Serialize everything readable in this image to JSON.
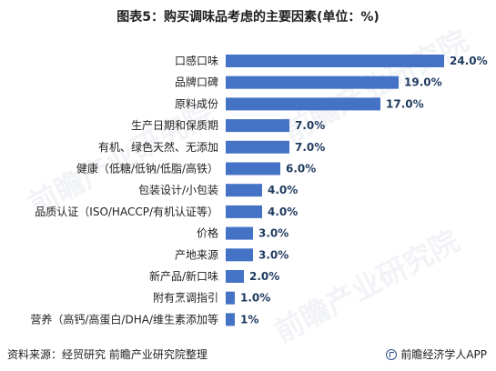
{
  "title": "图表5：购买调味品考虑的主要因素(单位：%)",
  "source": "资料来源：经贸研究  前瞻产业研究院整理",
  "brand": "前瞻经济学人APP",
  "watermark": "前瞻产业研究院",
  "colors": {
    "bar": "#4472c4"
  },
  "chart_data": {
    "type": "bar",
    "orientation": "horizontal",
    "categories": [
      "口感口味",
      "品牌口碑",
      "原料成份",
      "生产日期和保质期",
      "有机、绿色天然、无添加",
      "健康（低糖/低钠/低脂/高铁）",
      "包装设计/小包装",
      "品质认证（ISO/HACCP/有机认证等）",
      "价格",
      "产地来源",
      "新产品/新口味",
      "附有烹调指引",
      "营养（高钙/高蛋白/DHA/维生素添加等"
    ],
    "values": [
      24.0,
      19.0,
      17.0,
      7.0,
      7.0,
      6.0,
      4.0,
      4.0,
      3.0,
      3.0,
      2.0,
      1.0,
      1.0
    ],
    "value_labels": [
      "24.0%",
      "19.0%",
      "17.0%",
      "7.0%",
      "7.0%",
      "6.0%",
      "4.0%",
      "4.0%",
      "3.0%",
      "3.0%",
      "2.0%",
      "1.0%",
      "1%"
    ],
    "xlim": [
      0,
      24
    ],
    "grid": false,
    "legend": "none"
  }
}
